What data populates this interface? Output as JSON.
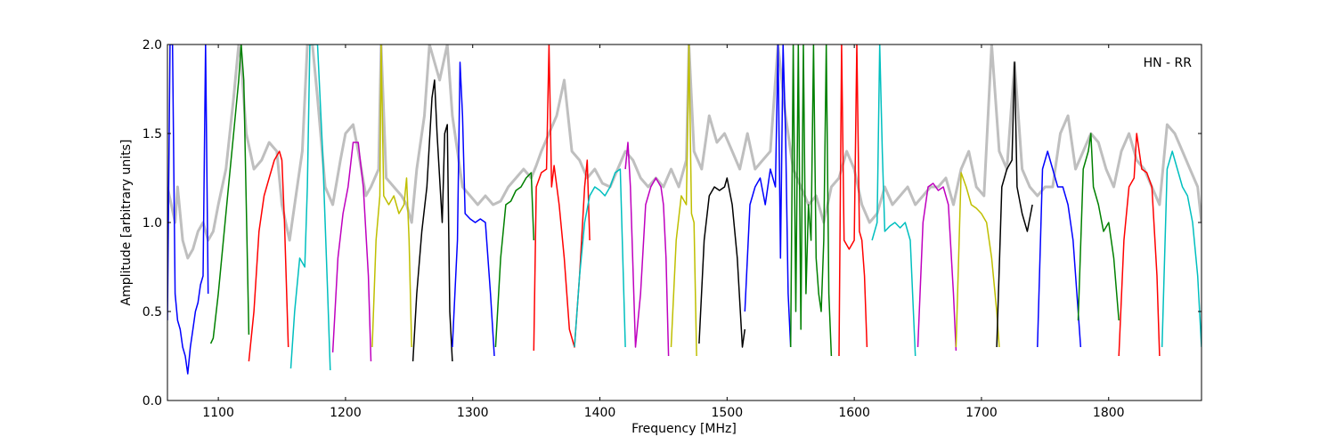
{
  "chart_data": {
    "type": "line",
    "title": "",
    "annotation": "HN - RR",
    "xlabel": "Frequency [MHz]",
    "ylabel": "Amplitude [arbitrary units]",
    "xlim": [
      1060,
      1873
    ],
    "ylim": [
      0.0,
      2.0
    ],
    "xticks": [
      1100,
      1200,
      1300,
      1400,
      1500,
      1600,
      1700,
      1800
    ],
    "xtick_labels": [
      "1100",
      "1200",
      "1300",
      "1400",
      "1500",
      "1600",
      "1700",
      "1800"
    ],
    "yticks": [
      0.0,
      0.5,
      1.0,
      1.5,
      2.0
    ],
    "ytick_labels": [
      "0.0",
      "0.5",
      "1.0",
      "1.5",
      "2.0"
    ],
    "grid": false,
    "envelope": {
      "color": "#bfbfbf",
      "x": [
        1060,
        1063,
        1066,
        1068,
        1072,
        1076,
        1080,
        1084,
        1088,
        1092,
        1096,
        1100,
        1106,
        1112,
        1116,
        1118,
        1122,
        1128,
        1134,
        1140,
        1146,
        1150,
        1156,
        1160,
        1166,
        1170,
        1174,
        1178,
        1184,
        1190,
        1196,
        1200,
        1206,
        1210,
        1216,
        1220,
        1226,
        1228,
        1232,
        1238,
        1244,
        1248,
        1252,
        1256,
        1262,
        1266,
        1270,
        1274,
        1280,
        1284,
        1290,
        1292,
        1298,
        1304,
        1310,
        1316,
        1322,
        1328,
        1334,
        1340,
        1346,
        1350,
        1354,
        1360,
        1366,
        1372,
        1378,
        1384,
        1390,
        1396,
        1402,
        1408,
        1414,
        1420,
        1426,
        1432,
        1438,
        1444,
        1450,
        1456,
        1462,
        1468,
        1470,
        1474,
        1480,
        1486,
        1492,
        1498,
        1504,
        1510,
        1516,
        1522,
        1528,
        1534,
        1540,
        1546,
        1552,
        1558,
        1564,
        1570,
        1576,
        1582,
        1588,
        1594,
        1600,
        1606,
        1612,
        1618,
        1624,
        1630,
        1636,
        1642,
        1648,
        1654,
        1660,
        1666,
        1672,
        1678,
        1684,
        1690,
        1696,
        1702,
        1708,
        1714,
        1720,
        1726,
        1732,
        1738,
        1744,
        1750,
        1756,
        1762,
        1768,
        1774,
        1780,
        1786,
        1792,
        1798,
        1804,
        1810,
        1816,
        1822,
        1828,
        1834,
        1840,
        1846,
        1852,
        1858,
        1864,
        1870,
        1873
      ],
      "y": [
        1.2,
        1.1,
        1.0,
        1.2,
        0.9,
        0.8,
        0.85,
        0.95,
        1.0,
        0.9,
        0.95,
        1.1,
        1.3,
        1.7,
        2.0,
        1.9,
        1.5,
        1.3,
        1.35,
        1.45,
        1.4,
        1.1,
        0.9,
        1.1,
        1.4,
        2.0,
        2.0,
        1.7,
        1.2,
        1.1,
        1.35,
        1.5,
        1.55,
        1.4,
        1.15,
        1.2,
        1.3,
        2.0,
        1.25,
        1.2,
        1.15,
        1.1,
        1.0,
        1.3,
        1.6,
        2.0,
        1.9,
        1.8,
        2.0,
        1.6,
        1.3,
        1.2,
        1.15,
        1.1,
        1.15,
        1.1,
        1.12,
        1.2,
        1.25,
        1.3,
        1.25,
        1.32,
        1.4,
        1.5,
        1.6,
        1.8,
        1.4,
        1.35,
        1.25,
        1.3,
        1.22,
        1.2,
        1.3,
        1.4,
        1.35,
        1.25,
        1.2,
        1.25,
        1.2,
        1.3,
        1.2,
        1.35,
        2.0,
        1.4,
        1.3,
        1.6,
        1.45,
        1.5,
        1.4,
        1.3,
        1.5,
        1.3,
        1.35,
        1.4,
        2.0,
        1.6,
        1.3,
        1.2,
        1.1,
        1.15,
        1.0,
        1.2,
        1.25,
        1.4,
        1.3,
        1.1,
        1.0,
        1.05,
        1.2,
        1.1,
        1.15,
        1.2,
        1.1,
        1.15,
        1.2,
        1.2,
        1.25,
        1.1,
        1.3,
        1.4,
        1.2,
        1.15,
        2.0,
        1.4,
        1.3,
        1.9,
        1.3,
        1.2,
        1.15,
        1.2,
        1.2,
        1.5,
        1.6,
        1.3,
        1.4,
        1.5,
        1.45,
        1.3,
        1.2,
        1.4,
        1.5,
        1.35,
        1.3,
        1.2,
        1.1,
        1.55,
        1.5,
        1.4,
        1.3,
        1.2,
        1.0
      ]
    },
    "series": [
      {
        "color": "#0000ff",
        "x": [
          1060,
          1062,
          1064,
          1066,
          1068,
          1070,
          1072,
          1074,
          1076,
          1078,
          1080,
          1082,
          1084,
          1086,
          1088,
          1090,
          1092
        ],
        "y": [
          0.45,
          2.0,
          2.0,
          0.6,
          0.45,
          0.4,
          0.3,
          0.25,
          0.15,
          0.3,
          0.4,
          0.5,
          0.55,
          0.65,
          0.7,
          2.0,
          0.6
        ]
      },
      {
        "color": "#008000",
        "x": [
          1094,
          1096,
          1100,
          1104,
          1108,
          1112,
          1116,
          1118,
          1120,
          1122,
          1124
        ],
        "y": [
          0.32,
          0.35,
          0.6,
          0.9,
          1.2,
          1.5,
          1.8,
          2.0,
          1.8,
          1.1,
          0.37
        ]
      },
      {
        "color": "#ff0000",
        "x": [
          1124,
          1128,
          1132,
          1136,
          1140,
          1144,
          1148,
          1150,
          1152,
          1155
        ],
        "y": [
          0.22,
          0.5,
          0.95,
          1.15,
          1.25,
          1.35,
          1.4,
          1.35,
          1.0,
          0.3
        ]
      },
      {
        "color": "#00bfbf",
        "x": [
          1157,
          1160,
          1164,
          1168,
          1170,
          1172,
          1174,
          1178,
          1182,
          1186,
          1188
        ],
        "y": [
          0.18,
          0.5,
          0.8,
          0.75,
          1.2,
          2.0,
          2.0,
          2.0,
          1.4,
          0.6,
          0.17
        ]
      },
      {
        "color": "#bf00bf",
        "x": [
          1190,
          1194,
          1198,
          1202,
          1206,
          1210,
          1214,
          1218,
          1220
        ],
        "y": [
          0.27,
          0.8,
          1.05,
          1.2,
          1.45,
          1.45,
          1.2,
          0.7,
          0.22
        ]
      },
      {
        "color": "#bfbf00",
        "x": [
          1221,
          1224,
          1227,
          1228,
          1230,
          1234,
          1238,
          1242,
          1246,
          1248,
          1250,
          1252
        ],
        "y": [
          0.3,
          0.9,
          1.15,
          2.0,
          1.15,
          1.1,
          1.15,
          1.05,
          1.1,
          1.25,
          0.9,
          0.3
        ]
      },
      {
        "color": "#000000",
        "x": [
          1253,
          1256,
          1260,
          1264,
          1268,
          1270,
          1272,
          1276,
          1278,
          1280,
          1282,
          1284
        ],
        "y": [
          0.22,
          0.6,
          0.95,
          1.2,
          1.7,
          1.8,
          1.5,
          1.0,
          1.5,
          1.55,
          0.5,
          0.22
        ]
      },
      {
        "color": "#0000ff",
        "x": [
          1284,
          1288,
          1290,
          1292,
          1294,
          1298,
          1302,
          1306,
          1310,
          1314,
          1317
        ],
        "y": [
          0.3,
          0.9,
          1.9,
          1.6,
          1.05,
          1.02,
          1.0,
          1.02,
          1.0,
          0.6,
          0.25
        ]
      },
      {
        "color": "#008000",
        "x": [
          1318,
          1322,
          1326,
          1330,
          1334,
          1338,
          1342,
          1346,
          1348
        ],
        "y": [
          0.3,
          0.8,
          1.1,
          1.12,
          1.18,
          1.2,
          1.25,
          1.28,
          0.9
        ]
      },
      {
        "color": "#ff0000",
        "x": [
          1348,
          1350,
          1354,
          1358,
          1360,
          1362,
          1364,
          1368,
          1372,
          1376,
          1380,
          1384,
          1388,
          1390,
          1392
        ],
        "y": [
          0.28,
          1.2,
          1.28,
          1.3,
          2.0,
          1.2,
          1.32,
          1.1,
          0.8,
          0.4,
          0.3,
          0.7,
          1.2,
          1.35,
          0.9
        ]
      },
      {
        "color": "#00bfbf",
        "x": [
          1380,
          1384,
          1388,
          1392,
          1396,
          1400,
          1404,
          1408,
          1412,
          1416,
          1420
        ],
        "y": [
          0.3,
          0.7,
          1.0,
          1.15,
          1.2,
          1.18,
          1.15,
          1.2,
          1.28,
          1.3,
          0.3
        ]
      },
      {
        "color": "#bf00bf",
        "x": [
          1420,
          1422,
          1424,
          1428,
          1432,
          1436,
          1440,
          1444,
          1448,
          1450,
          1452,
          1454
        ],
        "y": [
          1.3,
          1.45,
          1.2,
          0.3,
          0.6,
          1.1,
          1.2,
          1.25,
          1.2,
          1.1,
          0.8,
          0.25
        ]
      },
      {
        "color": "#bfbf00",
        "x": [
          1456,
          1460,
          1464,
          1468,
          1470,
          1472,
          1474,
          1476
        ],
        "y": [
          0.3,
          0.9,
          1.15,
          1.1,
          2.0,
          1.05,
          1.0,
          0.25
        ]
      },
      {
        "color": "#000000",
        "x": [
          1478,
          1482,
          1486,
          1490,
          1494,
          1498,
          1500,
          1504,
          1508,
          1512,
          1514
        ],
        "y": [
          0.32,
          0.9,
          1.15,
          1.2,
          1.18,
          1.2,
          1.25,
          1.1,
          0.8,
          0.3,
          0.4
        ]
      },
      {
        "color": "#0000ff",
        "x": [
          1514,
          1518,
          1522,
          1526,
          1530,
          1534,
          1538,
          1540,
          1542,
          1544,
          1546,
          1548,
          1550
        ],
        "y": [
          0.5,
          1.1,
          1.2,
          1.25,
          1.1,
          1.3,
          1.2,
          2.0,
          0.8,
          2.0,
          1.5,
          0.6,
          0.3
        ]
      },
      {
        "color": "#008000",
        "x": [
          1550,
          1552,
          1554,
          1556,
          1558,
          1560,
          1562,
          1564,
          1566,
          1568,
          1570,
          1572,
          1574,
          1576,
          1578,
          1580,
          1582
        ],
        "y": [
          0.3,
          2.0,
          0.5,
          2.0,
          0.4,
          2.0,
          0.6,
          1.1,
          0.9,
          2.0,
          0.8,
          0.6,
          0.5,
          0.9,
          2.0,
          0.6,
          0.25
        ]
      },
      {
        "color": "#ff0000",
        "x": [
          1588,
          1590,
          1592,
          1596,
          1600,
          1602,
          1604,
          1606,
          1608,
          1610
        ],
        "y": [
          0.25,
          2.0,
          0.9,
          0.85,
          0.9,
          2.0,
          0.95,
          0.9,
          0.7,
          0.3
        ]
      },
      {
        "color": "#00bfbf",
        "x": [
          1614,
          1618,
          1620,
          1622,
          1624,
          1628,
          1632,
          1636,
          1640,
          1644,
          1648
        ],
        "y": [
          0.9,
          1.0,
          2.0,
          1.4,
          0.95,
          0.98,
          1.0,
          0.97,
          1.0,
          0.9,
          0.25
        ]
      },
      {
        "color": "#bf00bf",
        "x": [
          1650,
          1654,
          1658,
          1662,
          1666,
          1670,
          1674,
          1678,
          1680
        ],
        "y": [
          0.3,
          1.0,
          1.2,
          1.22,
          1.18,
          1.2,
          1.1,
          0.6,
          0.28
        ]
      },
      {
        "color": "#bfbf00",
        "x": [
          1680,
          1684,
          1688,
          1692,
          1696,
          1700,
          1704,
          1708,
          1712,
          1714
        ],
        "y": [
          0.3,
          1.28,
          1.2,
          1.1,
          1.08,
          1.05,
          1.0,
          0.8,
          0.5,
          0.3
        ]
      },
      {
        "color": "#000000",
        "x": [
          1712,
          1716,
          1720,
          1724,
          1726,
          1728,
          1732,
          1736,
          1740
        ],
        "y": [
          0.3,
          1.2,
          1.3,
          1.35,
          1.9,
          1.2,
          1.05,
          0.95,
          1.1
        ]
      },
      {
        "color": "#0000ff",
        "x": [
          1744,
          1748,
          1752,
          1756,
          1760,
          1764,
          1768,
          1772,
          1776,
          1778
        ],
        "y": [
          0.3,
          1.3,
          1.4,
          1.3,
          1.2,
          1.2,
          1.1,
          0.9,
          0.5,
          0.3
        ]
      },
      {
        "color": "#008000",
        "x": [
          1776,
          1780,
          1784,
          1786,
          1788,
          1792,
          1796,
          1800,
          1804,
          1808
        ],
        "y": [
          0.45,
          1.3,
          1.4,
          1.5,
          1.2,
          1.1,
          0.95,
          1.0,
          0.8,
          0.45
        ]
      },
      {
        "color": "#ff0000",
        "x": [
          1808,
          1812,
          1816,
          1820,
          1822,
          1826,
          1830,
          1834,
          1838,
          1840
        ],
        "y": [
          0.25,
          0.9,
          1.2,
          1.25,
          1.5,
          1.3,
          1.28,
          1.2,
          0.7,
          0.25
        ]
      },
      {
        "color": "#00bfbf",
        "x": [
          1842,
          1846,
          1850,
          1854,
          1858,
          1862,
          1866,
          1870,
          1873
        ],
        "y": [
          0.3,
          1.3,
          1.4,
          1.3,
          1.2,
          1.15,
          1.0,
          0.7,
          0.3
        ]
      }
    ]
  }
}
